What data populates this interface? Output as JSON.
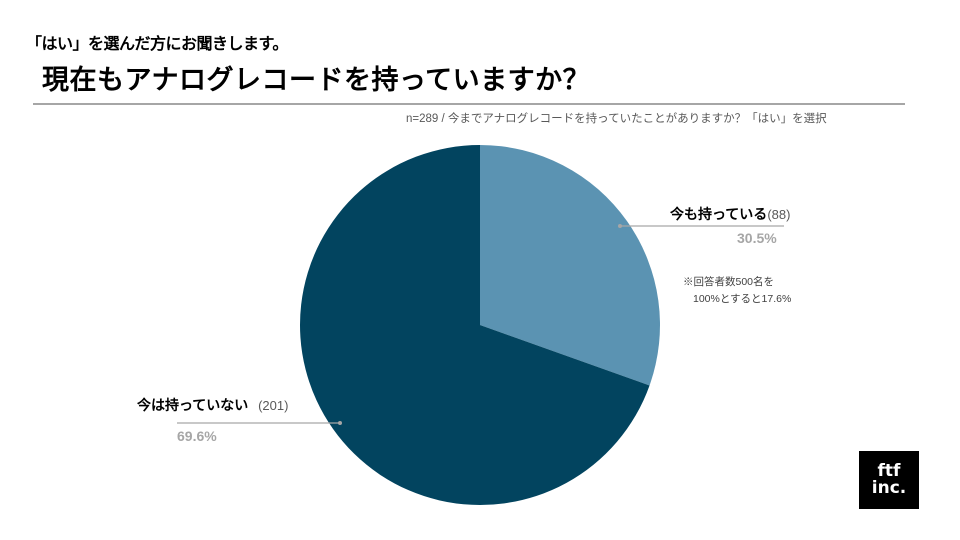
{
  "header": {
    "subtitle": "「はい」を選んだ方にお聞きします。",
    "title": "現在もアナログレコードを持っていますか？"
  },
  "note_top": "n=289 / 今までアナログレコードを持っていたことがありますか？「はい」を選択",
  "footnote": {
    "line1": "※回答者数500名を",
    "line2": "100%とすると17.6%"
  },
  "labels": {
    "yes": {
      "name": "今も持っている",
      "count": "(88)",
      "pct": "30.5%"
    },
    "no": {
      "name": "今は持っていない",
      "count": "(201)",
      "pct": "69.6%"
    }
  },
  "logo": {
    "line1": "ftf",
    "line2": "inc."
  },
  "colors": {
    "yes": "#5b93b2",
    "no": "#02445f",
    "leader": "#a6a6a6"
  },
  "chart_data": {
    "type": "pie",
    "title": "現在もアナログレコードを持っていますか？",
    "subtitle": "「はい」を選んだ方にお聞きします。",
    "note": "n=289 / 今までアナログレコードを持っていたことがありますか？「はい」を選択",
    "categories": [
      "今も持っている",
      "今は持っていない"
    ],
    "values": [
      88,
      201
    ],
    "percentages": [
      30.5,
      69.6
    ],
    "colors": [
      "#5b93b2",
      "#02445f"
    ],
    "start_angle": "12 o'clock, clockwise",
    "annotations": [
      "※回答者数500名を100%とすると17.6%"
    ],
    "legend": "none (direct labels with leader lines)"
  }
}
